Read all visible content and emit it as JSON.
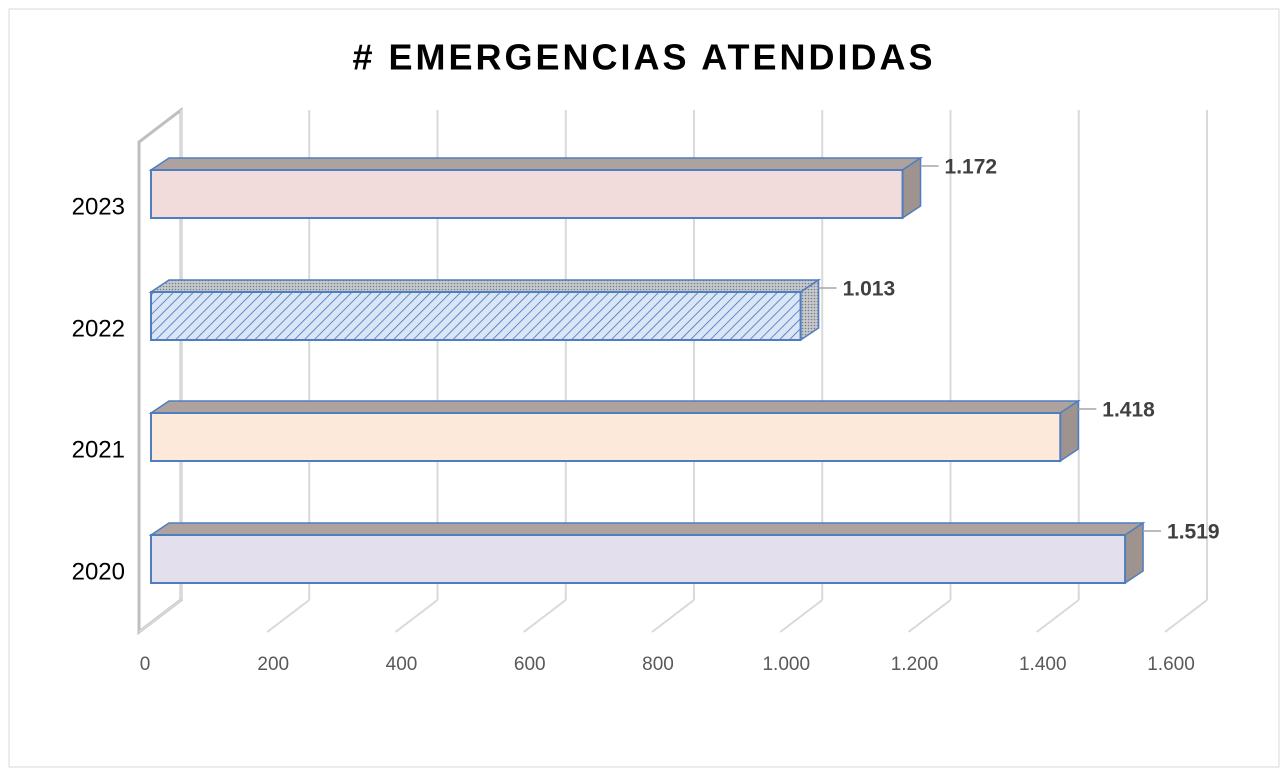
{
  "chart_data": {
    "type": "bar3d_horizontal",
    "title": "# EMERGENCIAS ATENDIDAS",
    "categories": [
      "2023",
      "2022",
      "2021",
      "2020"
    ],
    "values": [
      1172,
      1013,
      1418,
      1519
    ],
    "value_labels": [
      "1.172",
      "1.013",
      "1.418",
      "1.519"
    ],
    "colors": [
      "#f2dcdb",
      "#dae6f5",
      "#fde9d9",
      "#e4dfec"
    ],
    "fill_patterns": [
      "solid",
      "hatch",
      "solid",
      "solid"
    ],
    "xlim": [
      0,
      1600
    ],
    "xticks": [
      0,
      200,
      400,
      600,
      800,
      {
        "value": 1000,
        "label": "1.000"
      },
      {
        "value": 1200,
        "label": "1.200"
      },
      {
        "value": 1400,
        "label": "1.400"
      },
      {
        "value": 1600,
        "label": "1.600"
      }
    ],
    "grid": true
  }
}
